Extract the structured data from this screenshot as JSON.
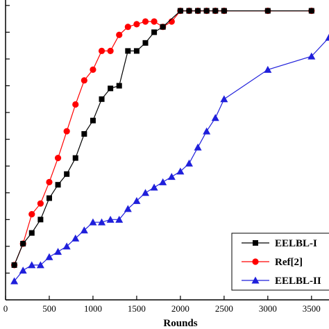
{
  "chart_data": {
    "type": "line",
    "xlabel": "Rounds",
    "ylabel": "",
    "title": "",
    "xlim": [
      0,
      3700
    ],
    "ylim": [
      0,
      11.1
    ],
    "x_ticks": [
      0,
      500,
      1000,
      1500,
      2000,
      2500,
      3000,
      3500
    ],
    "x_tick_labels": [
      "0",
      "500",
      "1000",
      "1500",
      "2000",
      "2500",
      "3000",
      "3500"
    ],
    "y_ticks": [
      0,
      1,
      2,
      3,
      4,
      5,
      6,
      7,
      8,
      9,
      10,
      11
    ],
    "legend_position": "bottom-right",
    "series": [
      {
        "name": "EELBL-I",
        "color": "#000000",
        "marker": "square",
        "x": [
          100,
          200,
          300,
          400,
          500,
          600,
          700,
          800,
          900,
          1000,
          1100,
          1200,
          1300,
          1400,
          1500,
          1600,
          1700,
          1800,
          2000,
          2100,
          2200,
          2300,
          2400,
          2500,
          3000,
          3500
        ],
        "y": [
          1.3,
          2.1,
          2.5,
          3.0,
          3.8,
          4.3,
          4.7,
          5.3,
          6.2,
          6.7,
          7.5,
          7.9,
          8.0,
          9.3,
          9.3,
          9.6,
          10.0,
          10.2,
          10.8,
          10.8,
          10.8,
          10.8,
          10.8,
          10.8,
          10.8,
          10.8
        ]
      },
      {
        "name": "Ref[2]",
        "color": "#ff0000",
        "marker": "circle",
        "x": [
          100,
          200,
          300,
          400,
          500,
          600,
          700,
          800,
          900,
          1000,
          1100,
          1200,
          1300,
          1400,
          1500,
          1600,
          1700,
          1800,
          1900,
          2000,
          2100,
          2200,
          2300,
          2400,
          2500,
          3000,
          3500
        ],
        "y": [
          1.3,
          2.1,
          3.2,
          3.6,
          4.4,
          5.3,
          6.3,
          7.3,
          8.2,
          8.6,
          9.3,
          9.3,
          9.9,
          10.2,
          10.3,
          10.4,
          10.4,
          10.2,
          10.4,
          10.8,
          10.8,
          10.8,
          10.8,
          10.8,
          10.8,
          10.8,
          10.8
        ]
      },
      {
        "name": "EELBL-II",
        "color": "#1f1fdb",
        "marker": "triangle",
        "x": [
          100,
          200,
          300,
          400,
          500,
          600,
          700,
          800,
          900,
          1000,
          1100,
          1200,
          1300,
          1400,
          1500,
          1600,
          1700,
          1800,
          1900,
          2000,
          2100,
          2200,
          2300,
          2400,
          2500,
          3000,
          3500,
          3700
        ],
        "y": [
          0.7,
          1.1,
          1.3,
          1.3,
          1.6,
          1.8,
          2.0,
          2.3,
          2.6,
          2.9,
          2.9,
          3.0,
          3.0,
          3.4,
          3.7,
          4.0,
          4.2,
          4.4,
          4.6,
          4.8,
          5.1,
          5.7,
          6.3,
          6.8,
          7.5,
          8.6,
          9.1,
          9.8
        ]
      }
    ]
  }
}
